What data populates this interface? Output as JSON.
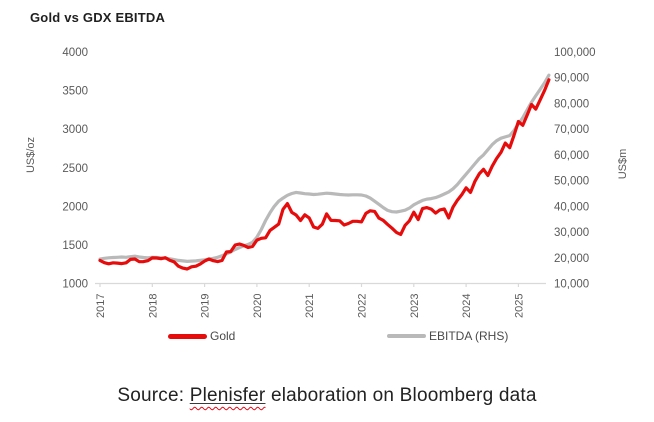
{
  "title": "Gold vs GDX EBITDA",
  "colors": {
    "gold_line": "#e60c0c",
    "ebitda_line": "#b9b9b9",
    "axis_line": "#d9d9d9",
    "tick_text": "#5a5a5a",
    "title_text": "#1f1f1f",
    "legend_text": "#4a4a4a",
    "source_text": "#222222",
    "squiggle": "#e30613"
  },
  "legend": [
    {
      "label": "Gold",
      "color": "#e60c0c"
    },
    {
      "label": "EBITDA (RHS)",
      "color": "#b9b9b9"
    }
  ],
  "source": {
    "prefix": "Source: ",
    "highlight": "Plenisfer",
    "suffix": " elaboration on Bloomberg data"
  },
  "chart_data": {
    "type": "line",
    "title": "Gold vs GDX EBITDA",
    "grid": false,
    "legend_position": "bottom",
    "x_start_year": 2017,
    "x_step_years": 0.0833333,
    "x_tick_labels": [
      "2017",
      "2018",
      "2019",
      "2020",
      "2021",
      "2022",
      "2023",
      "2024",
      "2025"
    ],
    "left_axis": {
      "label": "US$/oz",
      "min": 1000,
      "max": 4000,
      "ticks": [
        4000,
        3500,
        3000,
        2500,
        2000,
        1500,
        1000
      ]
    },
    "right_axis": {
      "label": "US$m",
      "min": 10000,
      "max": 100000,
      "ticks": [
        100000,
        90000,
        80000,
        70000,
        60000,
        50000,
        40000,
        30000,
        20000,
        10000
      ]
    },
    "series": [
      {
        "name": "Gold",
        "axis": "left",
        "color": "#e60c0c",
        "values": [
          1300,
          1270,
          1255,
          1268,
          1264,
          1258,
          1268,
          1312,
          1318,
          1282,
          1284,
          1296,
          1332,
          1330,
          1322,
          1334,
          1302,
          1280,
          1224,
          1200,
          1188,
          1216,
          1224,
          1252,
          1290,
          1318,
          1296,
          1284,
          1298,
          1408,
          1414,
          1498,
          1512,
          1494,
          1466,
          1480,
          1562,
          1586,
          1592,
          1688,
          1728,
          1770,
          1962,
          2035,
          1922,
          1888,
          1816,
          1890,
          1850,
          1732,
          1714,
          1768,
          1902,
          1818,
          1816,
          1812,
          1758,
          1778,
          1806,
          1806,
          1798,
          1908,
          1942,
          1934,
          1848,
          1818,
          1766,
          1716,
          1662,
          1636,
          1754,
          1812,
          1924,
          1828,
          1970,
          1984,
          1964,
          1912,
          1954,
          1966,
          1850,
          1990,
          2080,
          2150,
          2240,
          2180,
          2320,
          2420,
          2480,
          2400,
          2520,
          2620,
          2700,
          2820,
          2760,
          2920,
          3100,
          3050,
          3180,
          3320,
          3260,
          3380,
          3500,
          3640
        ]
      },
      {
        "name": "EBITDA (RHS)",
        "axis": "right",
        "color": "#b9b9b9",
        "values": [
          19500,
          19800,
          20000,
          20100,
          20200,
          20300,
          20200,
          20400,
          20600,
          20300,
          20100,
          20000,
          20200,
          20100,
          20000,
          19800,
          19600,
          19300,
          19000,
          18800,
          18600,
          18700,
          18800,
          19000,
          19200,
          19500,
          19800,
          20200,
          20800,
          21500,
          22300,
          23200,
          24000,
          24600,
          25200,
          26000,
          28000,
          31000,
          34500,
          37500,
          40000,
          42000,
          43200,
          44300,
          45000,
          45400,
          45200,
          44900,
          44800,
          44600,
          44700,
          44900,
          45100,
          45000,
          44800,
          44600,
          44500,
          44400,
          44500,
          44500,
          44400,
          44000,
          43200,
          42000,
          40800,
          39500,
          38400,
          37900,
          37800,
          38100,
          38500,
          39300,
          40600,
          41500,
          42300,
          42800,
          43000,
          43400,
          44000,
          44800,
          45600,
          46800,
          48500,
          50500,
          52500,
          54500,
          56500,
          58500,
          60000,
          62000,
          64000,
          65500,
          66500,
          67000,
          67500,
          69500,
          72000,
          74500,
          77500,
          80500,
          83000,
          85500,
          88000,
          91000
        ]
      }
    ]
  }
}
